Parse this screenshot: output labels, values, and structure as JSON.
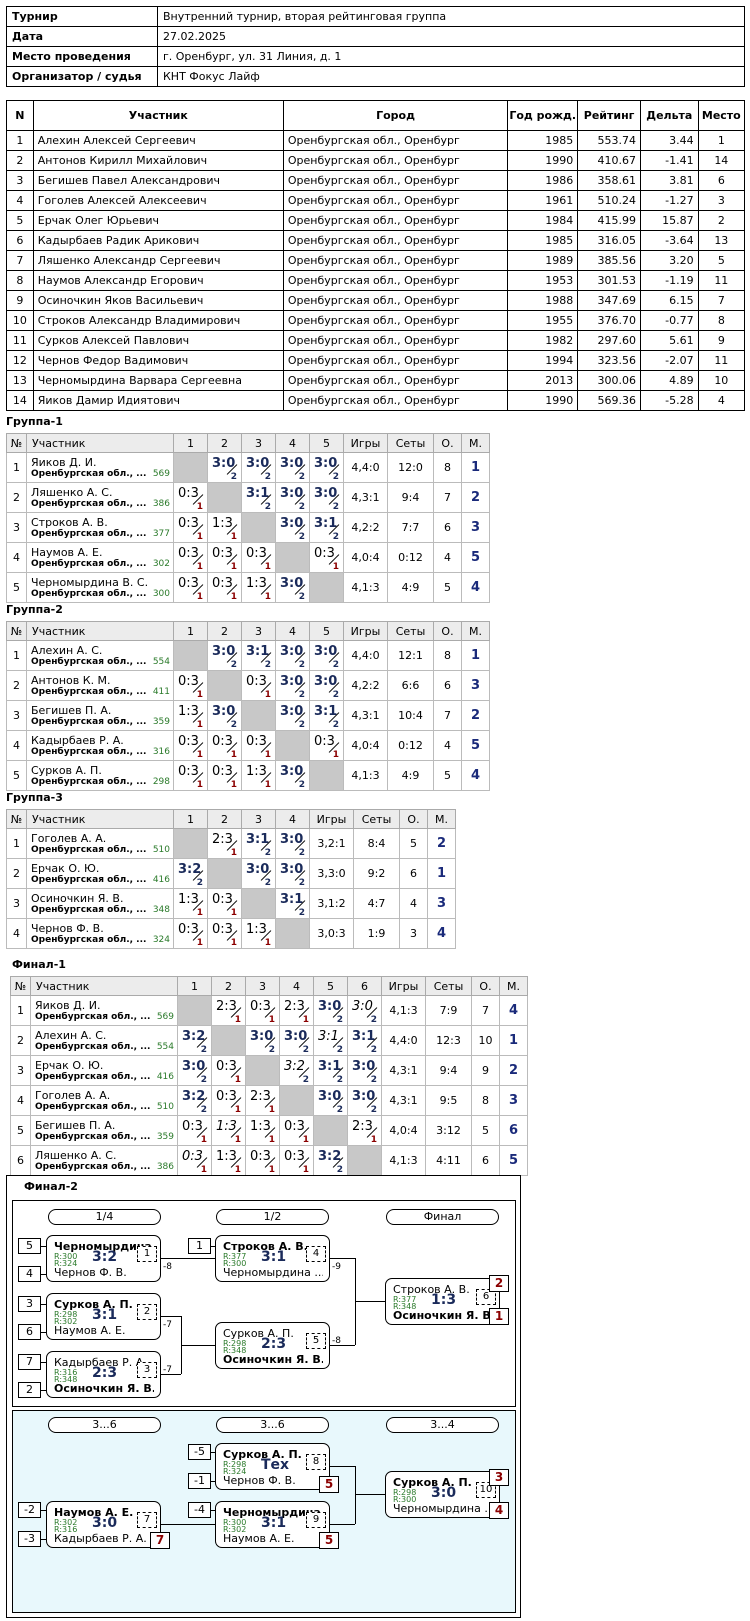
{
  "info": [
    {
      "k": "Турнир",
      "v": "Внутренний турнир, вторая рейтинговая группа"
    },
    {
      "k": "Дата",
      "v": "27.02.2025"
    },
    {
      "k": "Место проведения",
      "v": "г. Оренбург, ул. 31 Линия, д. 1"
    },
    {
      "k": "Организатор / судья",
      "v": "КНТ Фокус Лайф"
    }
  ],
  "main": {
    "headers": [
      "N",
      "Участник",
      "Город",
      "Год рожд.",
      "Рейтинг",
      "Дельта",
      "Место"
    ],
    "rows": [
      [
        "1",
        "Алехин Алексей Сергеевич",
        "Оренбургская обл., Оренбург",
        "1985",
        "553.74",
        "3.44",
        "1"
      ],
      [
        "2",
        "Антонов Кирилл Михайлович",
        "Оренбургская обл., Оренбург",
        "1990",
        "410.67",
        "-1.41",
        "14"
      ],
      [
        "3",
        "Бегишев Павел Александрович",
        "Оренбургская обл., Оренбург",
        "1986",
        "358.61",
        "3.81",
        "6"
      ],
      [
        "4",
        "Гоголев Алексей Алексеевич",
        "Оренбургская обл., Оренбург",
        "1961",
        "510.24",
        "-1.27",
        "3"
      ],
      [
        "5",
        "Ерчак Олег Юрьевич",
        "Оренбургская обл., Оренбург",
        "1984",
        "415.99",
        "15.87",
        "2"
      ],
      [
        "6",
        "Кадырбаев Радик Арикович",
        "Оренбургская обл., Оренбург",
        "1985",
        "316.05",
        "-3.64",
        "13"
      ],
      [
        "7",
        "Ляшенко Александр Сергеевич",
        "Оренбургская обл., Оренбург",
        "1989",
        "385.56",
        "3.20",
        "5"
      ],
      [
        "8",
        "Наумов Александр Егорович",
        "Оренбургская обл., Оренбург",
        "1953",
        "301.53",
        "-1.19",
        "11"
      ],
      [
        "9",
        "Осиночкин Яков Васильевич",
        "Оренбургская обл., Оренбург",
        "1988",
        "347.69",
        "6.15",
        "7"
      ],
      [
        "10",
        "Строков Александр Владимирович",
        "Оренбургская обл., Оренбург",
        "1955",
        "376.70",
        "-0.77",
        "8"
      ],
      [
        "11",
        "Сурков Алексей Павлович",
        "Оренбургская обл., Оренбург",
        "1982",
        "297.60",
        "5.61",
        "9"
      ],
      [
        "12",
        "Чернов Федор Вадимович",
        "Оренбургская обл., Оренбург",
        "1994",
        "323.56",
        "-2.07",
        "11"
      ],
      [
        "13",
        "Черномырдина Варвара Сергеевна",
        "Оренбургская обл., Оренбург",
        "2013",
        "300.06",
        "4.89",
        "10"
      ],
      [
        "14",
        "Яиков Дамир Идиятович",
        "Оренбургская обл., Оренбург",
        "1990",
        "569.36",
        "-5.28",
        "4"
      ]
    ]
  },
  "group_headers": {
    "n": "№",
    "p": "Участник",
    "games": "Игры",
    "sets": "Сеты",
    "o": "О.",
    "m": "М."
  },
  "groups": [
    {
      "title": "Группа-1",
      "players": [
        {
          "n": "1",
          "name": "Яиков Д. И.",
          "city": "Оренбургская обл., ...",
          "r": "569",
          "res": [
            "D",
            "W3:0/2",
            "W3:0/2",
            "W3:0/2",
            "W3:0/2"
          ],
          "games": "4,4:0",
          "sets": "12:0",
          "o": "8",
          "m": "1"
        },
        {
          "n": "2",
          "name": "Ляшенко А. С.",
          "city": "Оренбургская обл., ...",
          "r": "386",
          "res": [
            "L0:3/1",
            "D",
            "W3:1/2",
            "W3:0/2",
            "W3:0/2"
          ],
          "games": "4,3:1",
          "sets": "9:4",
          "o": "7",
          "m": "2"
        },
        {
          "n": "3",
          "name": "Строков А. В.",
          "city": "Оренбургская обл., ...",
          "r": "377",
          "res": [
            "L0:3/1",
            "L1:3/1",
            "D",
            "W3:0/2",
            "W3:1/2"
          ],
          "games": "4,2:2",
          "sets": "7:7",
          "o": "6",
          "m": "3"
        },
        {
          "n": "4",
          "name": "Наумов А. Е.",
          "city": "Оренбургская обл., ...",
          "r": "302",
          "res": [
            "L0:3/1",
            "L0:3/1",
            "L0:3/1",
            "D",
            "L0:3/1"
          ],
          "games": "4,0:4",
          "sets": "0:12",
          "o": "4",
          "m": "5"
        },
        {
          "n": "5",
          "name": "Черномырдина В. С.",
          "city": "Оренбургская обл., ...",
          "r": "300",
          "res": [
            "L0:3/1",
            "L0:3/1",
            "L1:3/1",
            "W3:0/2",
            "D"
          ],
          "games": "4,1:3",
          "sets": "4:9",
          "o": "5",
          "m": "4"
        }
      ]
    },
    {
      "title": "Группа-2",
      "players": [
        {
          "n": "1",
          "name": "Алехин А. С.",
          "city": "Оренбургская обл., ...",
          "r": "554",
          "res": [
            "D",
            "W3:0/2",
            "W3:1/2",
            "W3:0/2",
            "W3:0/2"
          ],
          "games": "4,4:0",
          "sets": "12:1",
          "o": "8",
          "m": "1"
        },
        {
          "n": "2",
          "name": "Антонов К. М.",
          "city": "Оренбургская обл., ...",
          "r": "411",
          "res": [
            "L0:3/1",
            "D",
            "L0:3/1",
            "W3:0/2",
            "W3:0/2"
          ],
          "games": "4,2:2",
          "sets": "6:6",
          "o": "6",
          "m": "3"
        },
        {
          "n": "3",
          "name": "Бегишев П. А.",
          "city": "Оренбургская обл., ...",
          "r": "359",
          "res": [
            "L1:3/1",
            "W3:0/2",
            "D",
            "W3:0/2",
            "W3:1/2"
          ],
          "games": "4,3:1",
          "sets": "10:4",
          "o": "7",
          "m": "2"
        },
        {
          "n": "4",
          "name": "Кадырбаев Р. А.",
          "city": "Оренбургская обл., ...",
          "r": "316",
          "res": [
            "L0:3/1",
            "L0:3/1",
            "L0:3/1",
            "D",
            "L0:3/1"
          ],
          "games": "4,0:4",
          "sets": "0:12",
          "o": "4",
          "m": "5"
        },
        {
          "n": "5",
          "name": "Сурков А. П.",
          "city": "Оренбургская обл., ...",
          "r": "298",
          "res": [
            "L0:3/1",
            "L0:3/1",
            "L1:3/1",
            "W3:0/2",
            "D"
          ],
          "games": "4,1:3",
          "sets": "4:9",
          "o": "5",
          "m": "4"
        }
      ]
    },
    {
      "title": "Группа-3",
      "players": [
        {
          "n": "1",
          "name": "Гоголев А. А.",
          "city": "Оренбургская обл., ...",
          "r": "510",
          "res": [
            "D",
            "L2:3/1",
            "W3:1/2",
            "W3:0/2"
          ],
          "games": "3,2:1",
          "sets": "8:4",
          "o": "5",
          "m": "2"
        },
        {
          "n": "2",
          "name": "Ерчак О. Ю.",
          "city": "Оренбургская обл., ...",
          "r": "416",
          "res": [
            "W3:2/2",
            "D",
            "W3:0/2",
            "W3:0/2"
          ],
          "games": "3,3:0",
          "sets": "9:2",
          "o": "6",
          "m": "1"
        },
        {
          "n": "3",
          "name": "Осиночкин Я. В.",
          "city": "Оренбургская обл., ...",
          "r": "348",
          "res": [
            "L1:3/1",
            "L0:3/1",
            "D",
            "W3:1/2"
          ],
          "games": "3,1:2",
          "sets": "4:7",
          "o": "4",
          "m": "3"
        },
        {
          "n": "4",
          "name": "Чернов Ф. В.",
          "city": "Оренбургская обл., ...",
          "r": "324",
          "res": [
            "L0:3/1",
            "L0:3/1",
            "L1:3/1",
            "D"
          ],
          "games": "3,0:3",
          "sets": "1:9",
          "o": "3",
          "m": "4"
        }
      ]
    },
    {
      "title": "Финал-1",
      "players": [
        {
          "n": "1",
          "name": "Яиков Д. И.",
          "city": "Оренбургская обл., ...",
          "r": "569",
          "res": [
            "D",
            "L2:3/1",
            "L0:3/1",
            "L2:3/1",
            "W3:0/2",
            "I3:0/2"
          ],
          "games": "4,1:3",
          "sets": "7:9",
          "o": "7",
          "m": "4"
        },
        {
          "n": "2",
          "name": "Алехин А. С.",
          "city": "Оренбургская обл., ...",
          "r": "554",
          "res": [
            "W3:2/2",
            "D",
            "W3:0/2",
            "W3:0/2",
            "I3:1/2",
            "W3:1/2"
          ],
          "games": "4,4:0",
          "sets": "12:3",
          "o": "10",
          "m": "1"
        },
        {
          "n": "3",
          "name": "Ерчак О. Ю.",
          "city": "Оренбургская обл., ...",
          "r": "416",
          "res": [
            "W3:0/2",
            "L0:3/1",
            "D",
            "I3:2/2",
            "W3:1/2",
            "W3:0/2"
          ],
          "games": "4,3:1",
          "sets": "9:4",
          "o": "9",
          "m": "2"
        },
        {
          "n": "4",
          "name": "Гоголев А. А.",
          "city": "Оренбургская обл., ...",
          "r": "510",
          "res": [
            "W3:2/2",
            "L0:3/1",
            "L2:3/1",
            "D",
            "W3:0/2",
            "W3:0/2"
          ],
          "games": "4,3:1",
          "sets": "9:5",
          "o": "8",
          "m": "3"
        },
        {
          "n": "5",
          "name": "Бегишев П. А.",
          "city": "Оренбургская обл., ...",
          "r": "359",
          "res": [
            "L0:3/1",
            "M1:3/1",
            "L1:3/1",
            "L0:3/1",
            "D",
            "L2:3/1"
          ],
          "games": "4,0:4",
          "sets": "3:12",
          "o": "5",
          "m": "6"
        },
        {
          "n": "6",
          "name": "Ляшенко А. С.",
          "city": "Оренбургская обл., ...",
          "r": "386",
          "res": [
            "M0:3/1",
            "L1:3/1",
            "L0:3/1",
            "L0:3/1",
            "W3:2/2",
            "D"
          ],
          "games": "4,1:3",
          "sets": "4:11",
          "o": "6",
          "m": "5"
        }
      ]
    }
  ],
  "final2": {
    "title": "Финал-2",
    "rounds": [
      "1/4",
      "1/2",
      "Финал",
      "3...6",
      "3...6",
      "3...4"
    ],
    "seeds": [
      "5",
      "4",
      "3",
      "6",
      "7",
      "2",
      "1",
      "-5",
      "-1",
      "-2",
      "-3",
      "-4"
    ],
    "matches": [
      {
        "a": "Черномырдина ...",
        "b": "Чернов Ф. В.",
        "ra": "R:300",
        "rb": "R:324",
        "s": "3:2",
        "mn": "1",
        "bold": "a"
      },
      {
        "a": "Сурков А. П.",
        "b": "Наумов А. Е.",
        "ra": "R:298",
        "rb": "R:302",
        "s": "3:1",
        "mn": "2",
        "bold": "a"
      },
      {
        "a": "Кадырбаев Р. А.",
        "b": "Осиночкин Я. В.",
        "ra": "R:316",
        "rb": "R:348",
        "s": "2:3",
        "mn": "3",
        "bold": "b"
      },
      {
        "a": "Строков А. В.",
        "b": "Черномырдина ...",
        "ra": "R:377",
        "rb": "R:300",
        "s": "3:1",
        "mn": "4",
        "bold": "a"
      },
      {
        "a": "Сурков А. П.",
        "b": "Осиночкин Я. В.",
        "ra": "R:298",
        "rb": "R:348",
        "s": "2:3",
        "mn": "5",
        "bold": "b"
      },
      {
        "a": "Строков А. В.",
        "b": "Осиночкин Я. В.",
        "ra": "R:377",
        "rb": "R:348",
        "s": "1:3",
        "mn": "6",
        "bold": "b"
      },
      {
        "a": "Сурков А. П.",
        "b": "Чернов Ф. В.",
        "ra": "R:298",
        "rb": "R:324",
        "s": "Тех",
        "mn": "8",
        "bold": "a"
      },
      {
        "a": "Наумов А. Е.",
        "b": "Кадырбаев Р. А.",
        "ra": "R:302",
        "rb": "R:316",
        "s": "3:0",
        "mn": "7",
        "bold": "a"
      },
      {
        "a": "Черномырдина ...",
        "b": "Наумов А. Е.",
        "ra": "R:300",
        "rb": "R:302",
        "s": "3:1",
        "mn": "9",
        "bold": "a"
      },
      {
        "a": "Сурков А. П.",
        "b": "Черномырдина ...",
        "ra": "R:298",
        "rb": "R:300",
        "s": "3:0",
        "mn": "10",
        "bold": "a"
      }
    ],
    "loser_links": [
      "-8",
      "-7",
      "-7",
      "-9",
      "-8"
    ],
    "places": [
      "2",
      "1",
      "5",
      "7",
      "5",
      "3",
      "4"
    ]
  }
}
